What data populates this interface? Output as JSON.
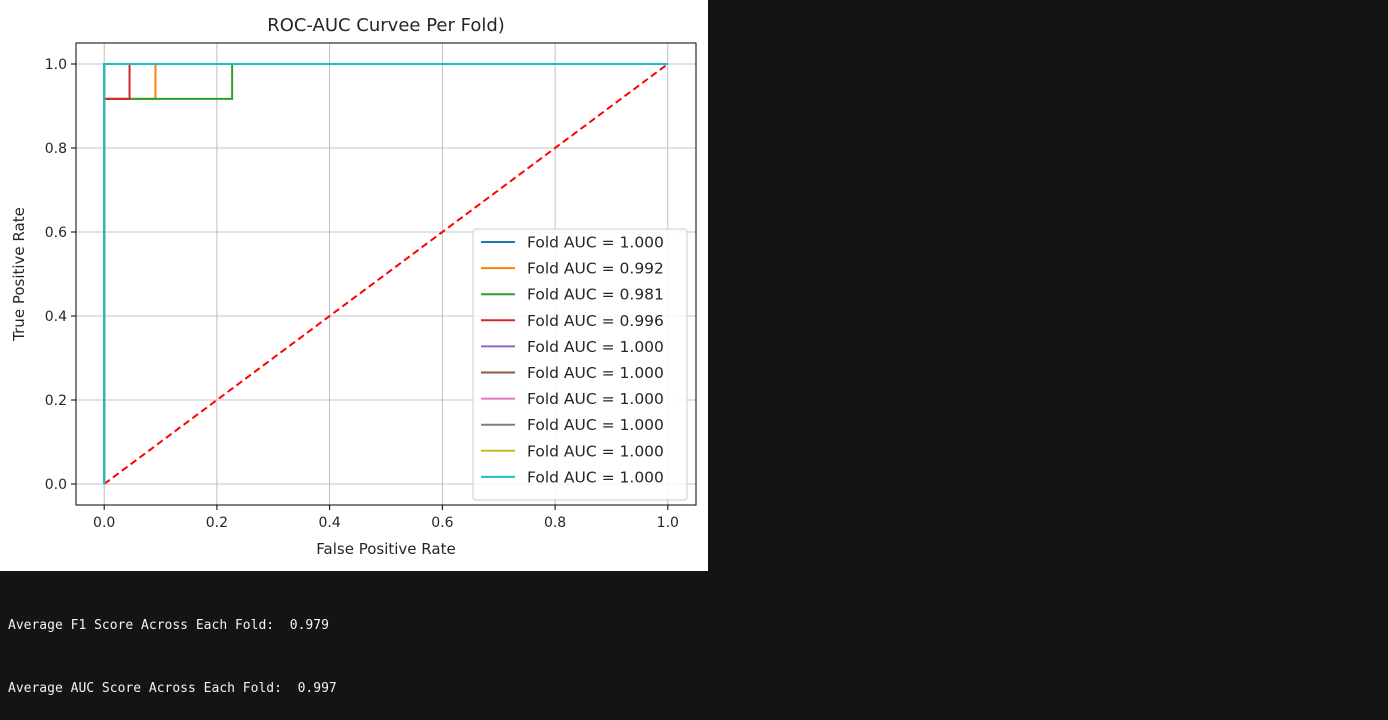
{
  "chart_data": {
    "type": "line",
    "title": "ROC-AUC Curvee Per Fold)",
    "xlabel": "False Positive Rate",
    "ylabel": "True Positive Rate",
    "xlim": [
      -0.05,
      1.05
    ],
    "ylim": [
      -0.05,
      1.05
    ],
    "xticks": [
      "0.0",
      "0.2",
      "0.4",
      "0.6",
      "0.8",
      "1.0"
    ],
    "yticks": [
      "0.0",
      "0.2",
      "0.4",
      "0.6",
      "0.8",
      "1.0"
    ],
    "grid": true,
    "legend_position": "lower-right",
    "series": [
      {
        "name": "Fold AUC = 1.000",
        "color": "#1f77b4",
        "x": [
          0,
          0,
          1
        ],
        "y": [
          0,
          1,
          1
        ]
      },
      {
        "name": "Fold AUC = 0.992",
        "color": "#ff7f0e",
        "x": [
          0,
          0,
          0.091,
          0.091,
          1
        ],
        "y": [
          0,
          0.917,
          0.917,
          1,
          1
        ]
      },
      {
        "name": "Fold AUC = 0.981",
        "color": "#2ca02c",
        "x": [
          0,
          0,
          0.227,
          0.227,
          1
        ],
        "y": [
          0,
          0.917,
          0.917,
          1,
          1
        ]
      },
      {
        "name": "Fold AUC = 0.996",
        "color": "#d62728",
        "x": [
          0,
          0,
          0.045,
          0.045,
          1
        ],
        "y": [
          0,
          0.917,
          0.917,
          1,
          1
        ]
      },
      {
        "name": "Fold AUC = 1.000",
        "color": "#9467bd",
        "x": [
          0,
          0,
          1
        ],
        "y": [
          0,
          1,
          1
        ]
      },
      {
        "name": "Fold AUC = 1.000",
        "color": "#8c564b",
        "x": [
          0,
          0,
          1
        ],
        "y": [
          0,
          1,
          1
        ]
      },
      {
        "name": "Fold AUC = 1.000",
        "color": "#e377c2",
        "x": [
          0,
          0,
          1
        ],
        "y": [
          0,
          1,
          1
        ]
      },
      {
        "name": "Fold AUC = 1.000",
        "color": "#7f7f7f",
        "x": [
          0,
          0,
          1
        ],
        "y": [
          0,
          1,
          1
        ]
      },
      {
        "name": "Fold AUC = 1.000",
        "color": "#bcbd22",
        "x": [
          0,
          0,
          1
        ],
        "y": [
          0,
          1,
          1
        ]
      },
      {
        "name": "Fold AUC = 1.000",
        "color": "#17becf",
        "x": [
          0,
          0,
          1
        ],
        "y": [
          0,
          1,
          1
        ]
      }
    ],
    "reference_line": {
      "x": [
        0,
        1
      ],
      "y": [
        0,
        1
      ],
      "color": "#ff0000",
      "style": "dashed"
    }
  },
  "output": {
    "f1_line": "Average F1 Score Across Each Fold:  0.979",
    "auc_line": "Average AUC Score Across Each Fold:  0.997"
  }
}
